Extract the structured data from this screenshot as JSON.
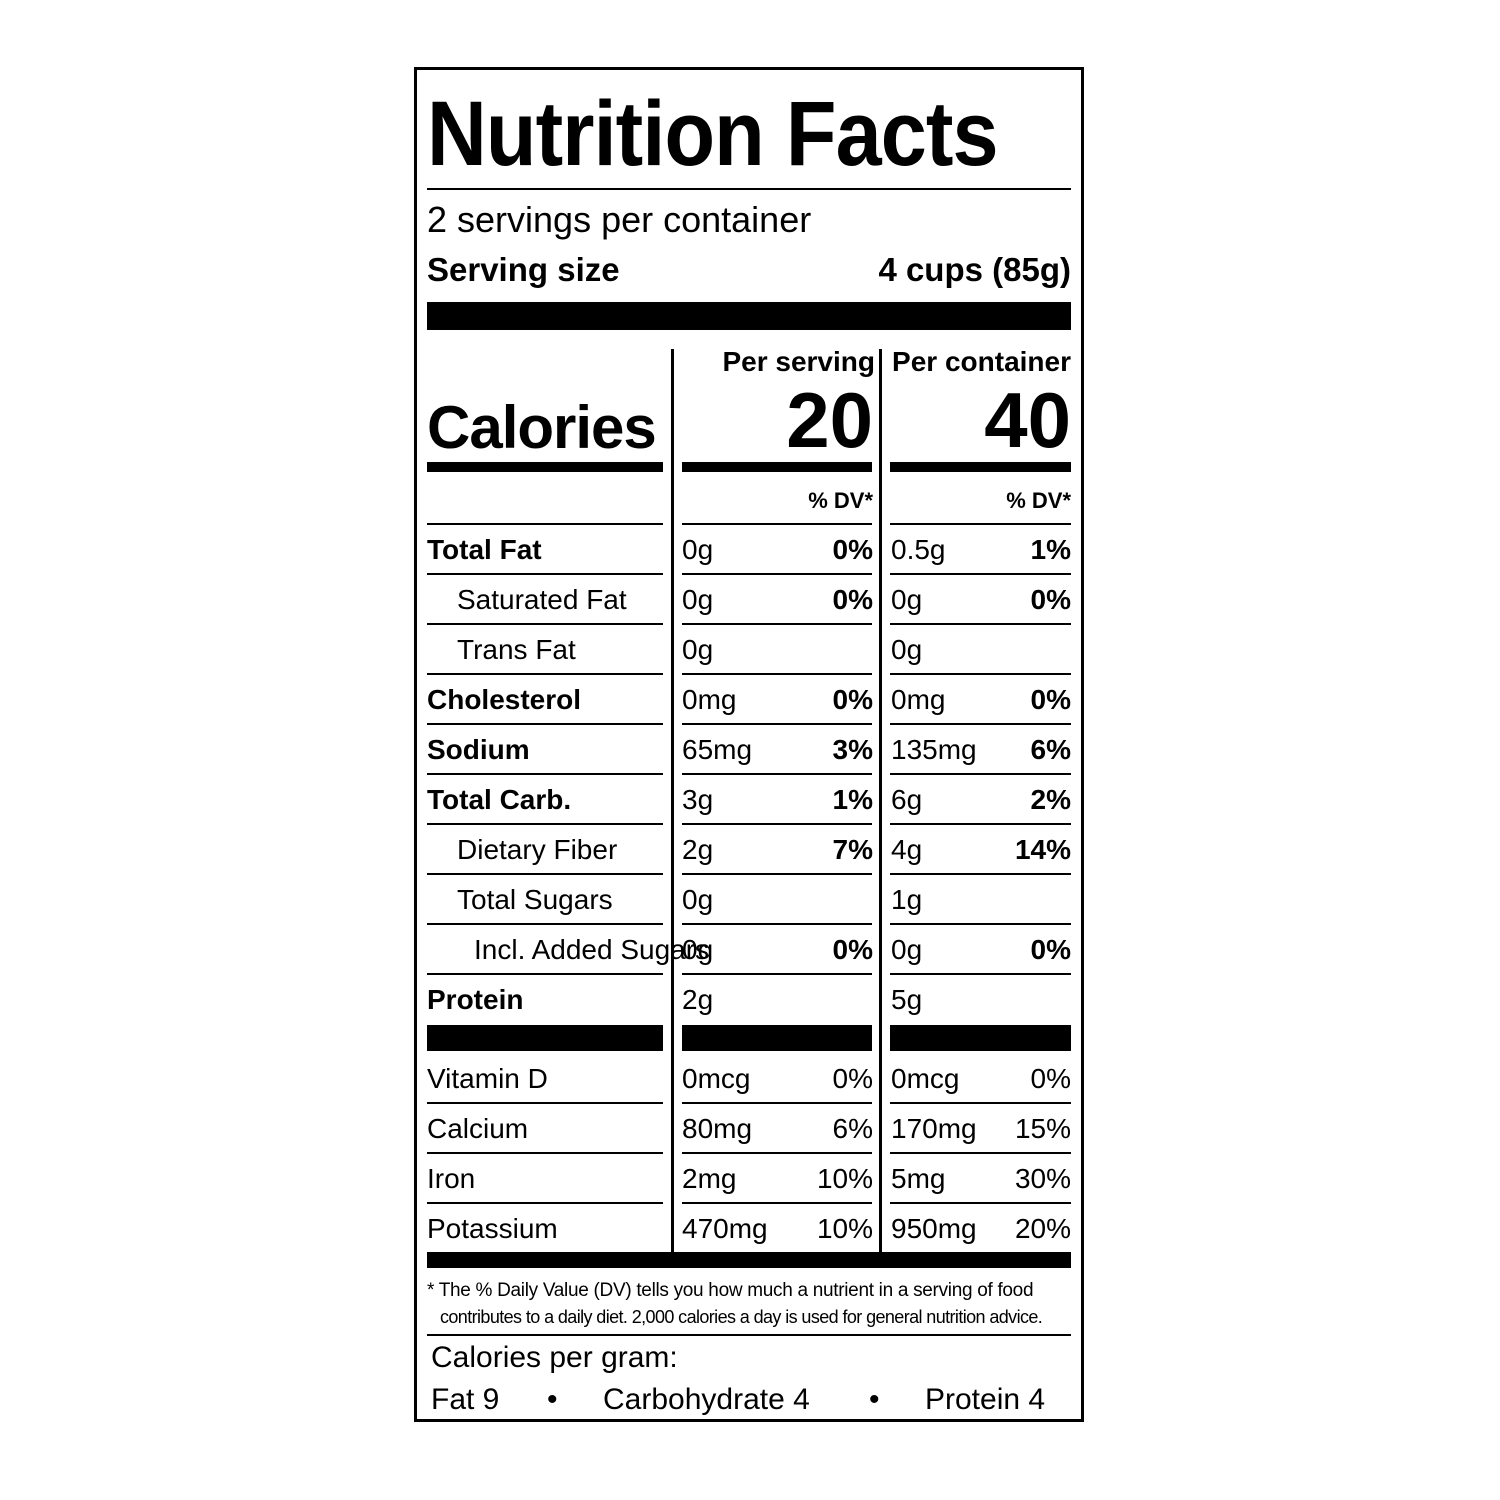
{
  "label": {
    "title": "Nutrition Facts",
    "servings_per_container": "2 servings per container",
    "serving_size_label": "Serving size",
    "serving_size_value": "4 cups (85g)",
    "per_serving_header": "Per serving",
    "per_container_header": "Per container",
    "calories_label": "Calories",
    "calories_per_serving": "20",
    "calories_per_container": "40",
    "dv_header": "% DV*",
    "nutrients": [
      {
        "name": "Total Fat",
        "bold": true,
        "indent": 0,
        "s_amt": "0g",
        "s_pct": "0%",
        "c_amt": "0.5g",
        "c_pct": "1%"
      },
      {
        "name": "Saturated Fat",
        "bold": false,
        "indent": 1,
        "s_amt": "0g",
        "s_pct": "0%",
        "c_amt": "0g",
        "c_pct": "0%"
      },
      {
        "name": "Trans Fat",
        "bold": false,
        "indent": 1,
        "s_amt": "0g",
        "s_pct": "",
        "c_amt": "0g",
        "c_pct": ""
      },
      {
        "name": "Cholesterol",
        "bold": true,
        "indent": 0,
        "s_amt": "0mg",
        "s_pct": "0%",
        "c_amt": "0mg",
        "c_pct": "0%"
      },
      {
        "name": "Sodium",
        "bold": true,
        "indent": 0,
        "s_amt": "65mg",
        "s_pct": "3%",
        "c_amt": "135mg",
        "c_pct": "6%"
      },
      {
        "name": "Total Carb.",
        "bold": true,
        "indent": 0,
        "s_amt": "3g",
        "s_pct": "1%",
        "c_amt": "6g",
        "c_pct": "2%"
      },
      {
        "name": "Dietary Fiber",
        "bold": false,
        "indent": 1,
        "s_amt": "2g",
        "s_pct": "7%",
        "c_amt": "4g",
        "c_pct": "14%"
      },
      {
        "name": "Total Sugars",
        "bold": false,
        "indent": 1,
        "s_amt": "0g",
        "s_pct": "",
        "c_amt": "1g",
        "c_pct": ""
      },
      {
        "name": "Incl. Added Sugars",
        "bold": false,
        "indent": 2,
        "s_amt": "0g",
        "s_pct": "0%",
        "c_amt": "0g",
        "c_pct": "0%"
      },
      {
        "name": "Protein",
        "bold": true,
        "indent": 0,
        "s_amt": "2g",
        "s_pct": "",
        "c_amt": "5g",
        "c_pct": ""
      }
    ],
    "vitamins": [
      {
        "name": "Vitamin D",
        "s_amt": "0mcg",
        "s_pct": "0%",
        "c_amt": "0mcg",
        "c_pct": "0%"
      },
      {
        "name": "Calcium",
        "s_amt": "80mg",
        "s_pct": "6%",
        "c_amt": "170mg",
        "c_pct": "15%"
      },
      {
        "name": "Iron",
        "s_amt": "2mg",
        "s_pct": "10%",
        "c_amt": "5mg",
        "c_pct": "30%"
      },
      {
        "name": "Potassium",
        "s_amt": "470mg",
        "s_pct": "10%",
        "c_amt": "950mg",
        "c_pct": "20%"
      }
    ],
    "footnote_line1": "* The % Daily Value (DV) tells you how much a nutrient in a serving of food",
    "footnote_line2": "contributes to a daily diet. 2,000 calories a day is used for general nutrition advice.",
    "calories_per_gram_label": "Calories per gram:",
    "fat_factor": "Fat 9",
    "carb_factor": "Carbohydrate 4",
    "protein_factor": "Protein 4",
    "separator": "•"
  }
}
